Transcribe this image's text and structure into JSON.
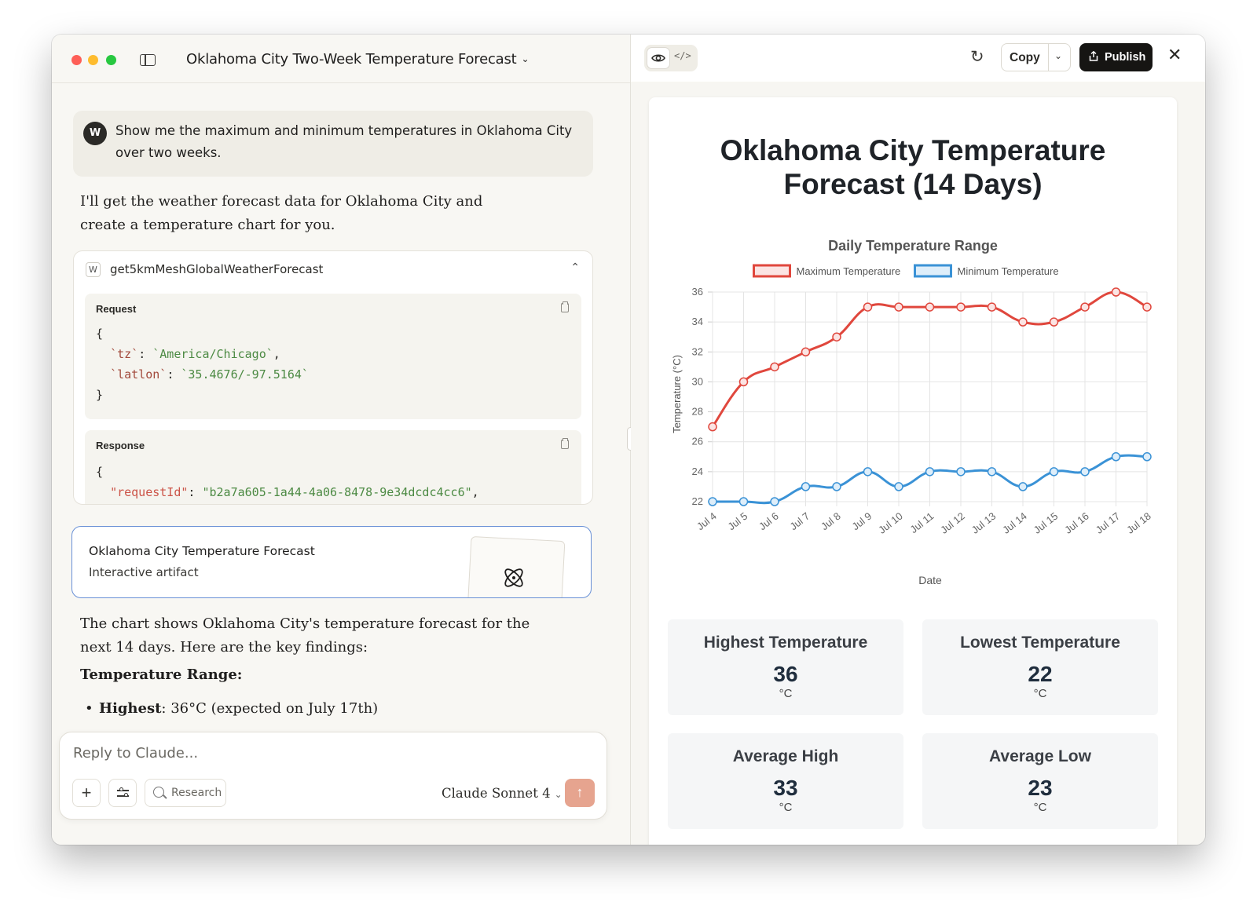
{
  "window": {
    "conversation_title": "Oklahoma City Two-Week Temperature Forecast"
  },
  "user_message": {
    "avatar_initial": "W",
    "text": "Show me the maximum and minimum temperatures in Oklahoma City over two weeks."
  },
  "assistant": {
    "intro": "I'll get the weather forecast data for Oklahoma City and create a temperature chart for you.",
    "summary": "The chart shows Oklahoma City's temperature forecast for the next 14 days. Here are the key findings:",
    "section_heading": "Temperature Range:",
    "bullet_label": "Highest",
    "bullet_text": ": 36°C (expected on July 17th)"
  },
  "tool_call": {
    "badge": "W",
    "name": "get5kmMeshGlobalWeatherForecast",
    "request_label": "Request",
    "response_label": "Response",
    "request_open": "{",
    "request_close": "}",
    "tz_key": "`tz`",
    "tz_value": "`America/Chicago`",
    "latlon_key": "`latlon`",
    "latlon_value": "`35.4676/-97.5164`",
    "response_open": "{",
    "request_id_key": "\"requestId\"",
    "request_id_value": "\"b2a7a605-1a44-4a06-8478-9e34dcdc4cc6\""
  },
  "artifact": {
    "title": "Oklahoma City Temperature Forecast",
    "subtitle": "Interactive artifact"
  },
  "composer": {
    "placeholder": "Reply to Claude...",
    "research_label": "Research",
    "model": "Claude Sonnet 4"
  },
  "artifact_toolbar": {
    "copy_label": "Copy",
    "publish_label": "Publish"
  },
  "page": {
    "title_line1": "Oklahoma City Temperature",
    "title_line2": "Forecast (14 Days)"
  },
  "chart_data": {
    "type": "line",
    "title": "Daily Temperature Range",
    "xlabel": "Date",
    "ylabel": "Temperature (°C)",
    "categories": [
      "Jul 4",
      "Jul 5",
      "Jul 6",
      "Jul 7",
      "Jul 8",
      "Jul 9",
      "Jul 10",
      "Jul 11",
      "Jul 12",
      "Jul 13",
      "Jul 14",
      "Jul 15",
      "Jul 16",
      "Jul 17",
      "Jul 18"
    ],
    "ylim": [
      22,
      36
    ],
    "yticks": [
      22,
      24,
      26,
      28,
      30,
      32,
      34,
      36
    ],
    "grid": true,
    "legend_position": "top",
    "series": [
      {
        "name": "Maximum Temperature",
        "color": "#e0473d",
        "fill": "#fbe4e3",
        "values": [
          27,
          30,
          31,
          32,
          33,
          35,
          35,
          35,
          35,
          35,
          34,
          34,
          35,
          36,
          35
        ]
      },
      {
        "name": "Minimum Temperature",
        "color": "#3a92d6",
        "fill": "#deeefa",
        "values": [
          22,
          22,
          22,
          23,
          23,
          24,
          23,
          24,
          24,
          24,
          23,
          24,
          24,
          25,
          25
        ]
      }
    ]
  },
  "stats": [
    {
      "label": "Highest Temperature",
      "value": "36",
      "unit": "°C"
    },
    {
      "label": "Lowest Temperature",
      "value": "22",
      "unit": "°C"
    },
    {
      "label": "Average High",
      "value": "33",
      "unit": "°C"
    },
    {
      "label": "Average Low",
      "value": "23",
      "unit": "°C"
    }
  ]
}
